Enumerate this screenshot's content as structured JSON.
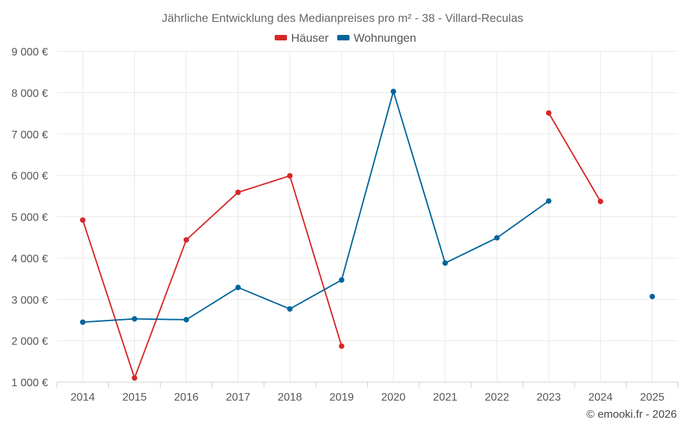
{
  "chart_data": {
    "type": "line",
    "title": "Jährliche Entwicklung des Medianpreises pro m² - 38 - Villard-Reculas",
    "categories": [
      "2014",
      "2015",
      "2016",
      "2017",
      "2018",
      "2019",
      "2020",
      "2021",
      "2022",
      "2023",
      "2024",
      "2025"
    ],
    "ylim": [
      1000,
      9000
    ],
    "yticks": [
      1000,
      2000,
      3000,
      4000,
      5000,
      6000,
      7000,
      8000,
      9000
    ],
    "ytick_labels": [
      "1 000 €",
      "2 000 €",
      "3 000 €",
      "4 000 €",
      "5 000 €",
      "6 000 €",
      "7 000 €",
      "8 000 €",
      "9 000 €"
    ],
    "legend_position": "top-center",
    "grid": true,
    "series": [
      {
        "name": "Häuser",
        "color": "#d62728",
        "values": [
          4920,
          1100,
          4440,
          5590,
          5990,
          1870,
          null,
          null,
          null,
          7510,
          5370,
          null
        ]
      },
      {
        "name": "Wohnungen",
        "color": "#00659b",
        "values": [
          2450,
          2530,
          2510,
          3290,
          2770,
          3470,
          8030,
          3880,
          4490,
          5380,
          null,
          3070
        ]
      }
    ]
  },
  "credit": "© emooki.fr - 2026"
}
